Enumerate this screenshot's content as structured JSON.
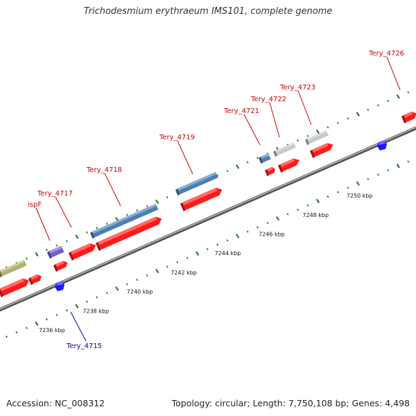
{
  "title": "Trichodesmium erythraeum IMS101, complete genome",
  "footer": {
    "accession": "Accession: NC_008312",
    "stats": "Topology: circular; Length: 7,750,108 bp; Genes: 4,498"
  },
  "colors": {
    "cds_forward": "#ff1a1a",
    "cds_reverse": "#1a1aff",
    "backbone": "#888888",
    "tick": "#2a7a2a",
    "label_forward": "#cc0000",
    "label_reverse": "#0000aa",
    "feature_blue": "#4a7fb5",
    "feature_grey": "#c8c8c8",
    "feature_purple": "#7060cc",
    "feature_olive": "#b4b070"
  },
  "scale": {
    "unit": "kbp",
    "labels": [
      {
        "kbp": 7236,
        "text": "7236 kbp"
      },
      {
        "kbp": 7238,
        "text": "7238 kbp"
      },
      {
        "kbp": 7240,
        "text": "7240 kbp"
      },
      {
        "kbp": 7242,
        "text": "7242 kbp"
      },
      {
        "kbp": 7244,
        "text": "7244 kbp"
      },
      {
        "kbp": 7246,
        "text": "7246 kbp"
      },
      {
        "kbp": 7248,
        "text": "7248 kbp"
      },
      {
        "kbp": 7250,
        "text": "7250 kbp"
      }
    ]
  },
  "gene_labels": [
    {
      "name": "ispF",
      "strand": "forward"
    },
    {
      "name": "Tery_4717",
      "strand": "forward"
    },
    {
      "name": "Tery_4718",
      "strand": "forward"
    },
    {
      "name": "Tery_4719",
      "strand": "forward"
    },
    {
      "name": "Tery_4721",
      "strand": "forward"
    },
    {
      "name": "Tery_4722",
      "strand": "forward"
    },
    {
      "name": "Tery_4723",
      "strand": "forward"
    },
    {
      "name": "Tery_4726",
      "strand": "forward"
    },
    {
      "name": "Tery_4715",
      "strand": "reverse"
    }
  ]
}
